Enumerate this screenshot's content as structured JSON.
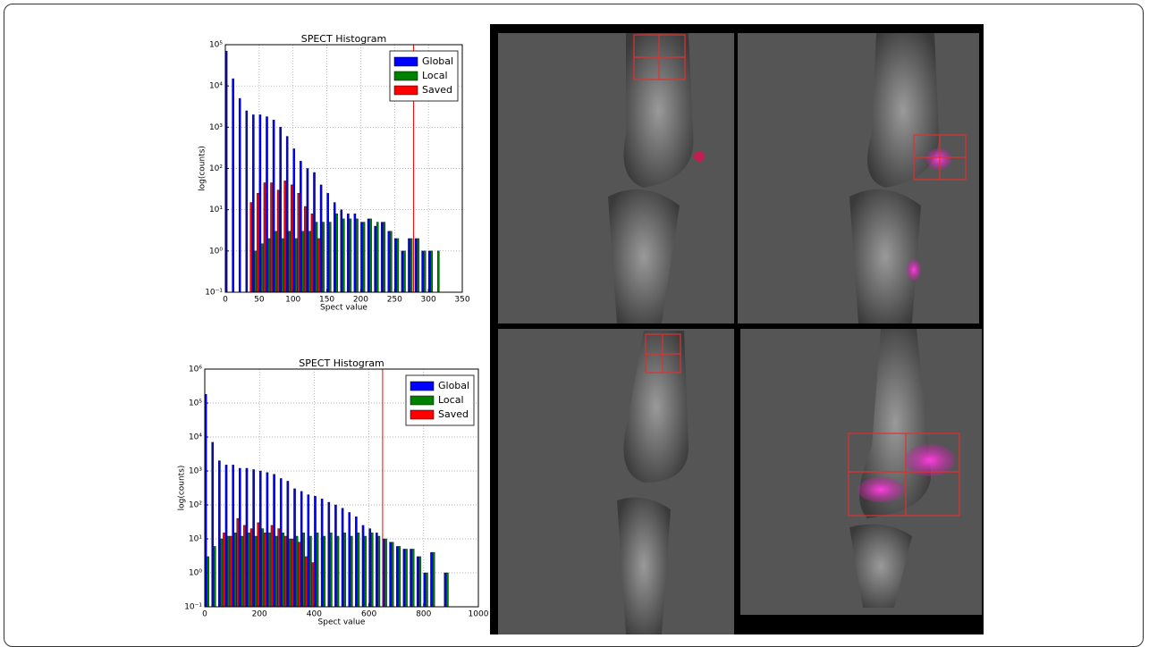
{
  "chart_data": [
    {
      "type": "bar",
      "title": "SPECT Histogram",
      "xlabel": "Spect value",
      "ylabel": "log(counts)",
      "x": [
        5,
        15,
        25,
        35,
        45,
        55,
        65,
        75,
        85,
        95,
        105,
        115,
        125,
        135,
        145,
        155,
        165,
        175,
        185,
        195,
        205,
        215,
        225,
        235,
        245,
        255,
        265,
        275,
        285,
        295,
        305,
        315
      ],
      "series": [
        {
          "name": "Global",
          "color": "#0000ff",
          "values": [
            70000,
            15000,
            5000,
            2500,
            2000,
            2000,
            1800,
            1500,
            1000,
            600,
            300,
            150,
            100,
            80,
            40,
            25,
            15,
            10,
            8,
            8,
            5,
            6,
            4,
            5,
            3,
            2,
            1,
            2,
            2,
            1,
            1,
            null
          ]
        },
        {
          "name": "Local",
          "color": "#008000",
          "values": [
            null,
            null,
            null,
            null,
            1,
            1.5,
            2,
            3,
            2,
            3,
            2,
            3,
            3,
            5,
            5,
            5,
            8,
            6,
            6,
            6,
            5,
            6,
            5,
            5,
            3,
            2,
            1,
            2,
            2,
            1,
            1,
            1
          ]
        },
        {
          "name": "Saved",
          "color": "#ff0000",
          "values": [
            null,
            null,
            null,
            15,
            25,
            45,
            45,
            30,
            50,
            40,
            25,
            12,
            8,
            2,
            null,
            null,
            null,
            null,
            null,
            null,
            null,
            null,
            null,
            null,
            null,
            null,
            null,
            null,
            null,
            null,
            null,
            null
          ]
        }
      ],
      "xlim": [
        0,
        350
      ],
      "xticks": [
        0,
        50,
        100,
        150,
        200,
        250,
        300,
        350
      ],
      "ylim": [
        0.1,
        100000
      ],
      "yticks": [
        {
          "value": 0.1,
          "label": "10⁻¹"
        },
        {
          "value": 1,
          "label": "10⁰"
        },
        {
          "value": 10,
          "label": "10¹"
        },
        {
          "value": 100,
          "label": "10²"
        },
        {
          "value": 1000,
          "label": "10³"
        },
        {
          "value": 10000,
          "label": "10⁴"
        },
        {
          "value": 100000,
          "label": "10⁵"
        }
      ],
      "log_scale": true,
      "grid": true,
      "legend": "upper right",
      "threshold": 278,
      "threshold_color": "#ff0000"
    },
    {
      "type": "bar",
      "title": "SPECT Histogram",
      "xlabel": "Spect value",
      "ylabel": "log(counts)",
      "x": [
        12.5,
        37.5,
        62.5,
        87.5,
        112.5,
        137.5,
        162.5,
        187.5,
        212.5,
        237.5,
        262.5,
        287.5,
        312.5,
        337.5,
        362.5,
        387.5,
        412.5,
        437.5,
        462.5,
        487.5,
        512.5,
        537.5,
        562.5,
        587.5,
        612.5,
        637.5,
        662.5,
        687.5,
        712.5,
        737.5,
        762.5,
        787.5,
        812.5,
        837.5,
        862.5,
        887.5
      ],
      "series": [
        {
          "name": "Global",
          "color": "#0000ff",
          "values": [
            180000,
            7000,
            2000,
            1500,
            1500,
            1200,
            1200,
            1100,
            1000,
            900,
            800,
            600,
            500,
            300,
            250,
            200,
            180,
            150,
            120,
            100,
            80,
            60,
            45,
            25,
            20,
            15,
            10,
            8,
            6,
            5,
            5,
            3,
            1,
            4,
            null,
            1
          ]
        },
        {
          "name": "Local",
          "color": "#008000",
          "values": [
            3,
            6,
            10,
            12,
            15,
            12,
            15,
            12,
            20,
            15,
            12,
            15,
            10,
            12,
            15,
            12,
            15,
            12,
            15,
            12,
            15,
            12,
            15,
            12,
            15,
            12,
            10,
            8,
            6,
            5,
            5,
            3,
            1,
            4,
            null,
            1
          ]
        },
        {
          "name": "Saved",
          "color": "#ff0000",
          "values": [
            null,
            null,
            15,
            12,
            40,
            25,
            20,
            30,
            15,
            25,
            20,
            12,
            10,
            8,
            3,
            2,
            null,
            null,
            null,
            null,
            null,
            null,
            null,
            null,
            null,
            null,
            null,
            null,
            null,
            null,
            null,
            null,
            null,
            null,
            null,
            null
          ]
        }
      ],
      "xlim": [
        0,
        1000
      ],
      "xticks": [
        0,
        200,
        400,
        600,
        800,
        1000
      ],
      "ylim": [
        0.1,
        1000000
      ],
      "yticks": [
        {
          "value": 0.1,
          "label": "10⁻¹"
        },
        {
          "value": 1,
          "label": "10⁰"
        },
        {
          "value": 10,
          "label": "10¹"
        },
        {
          "value": 100,
          "label": "10²"
        },
        {
          "value": 1000,
          "label": "10³"
        },
        {
          "value": 10000,
          "label": "10⁴"
        },
        {
          "value": 100000,
          "label": "10⁵"
        },
        {
          "value": 1000000,
          "label": "10⁶"
        }
      ],
      "log_scale": true,
      "grid": true,
      "legend": "upper right",
      "threshold": 650,
      "threshold_color": "#ff0000"
    }
  ]
}
